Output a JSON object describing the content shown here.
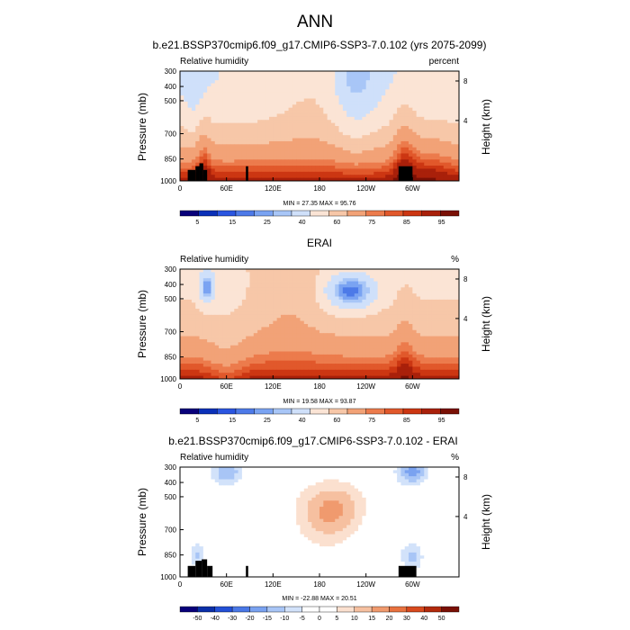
{
  "figure": {
    "title": "ANN"
  },
  "chart_data": [
    {
      "type": "heatmap",
      "title": "b.e21.BSSP370cmip6.f09_g17.CMIP6-SSP3-7.0.102 (yrs 2075-2099)",
      "left_label": "Relative humidity",
      "right_label": "percent",
      "ylabel": "Pressure (mb)",
      "ylabel_right": "Height (km)",
      "x_ticks": [
        "0",
        "60E",
        "120E",
        "180",
        "120W",
        "60W"
      ],
      "y_ticks": [
        "300",
        "400",
        "500",
        "700",
        "850",
        "1000"
      ],
      "y_ticks_right": [
        "8",
        "4"
      ],
      "stats": "MIN = 27.35  MAX = 95.76",
      "min": 27.35,
      "max": 95.76,
      "colorbar_labels": [
        "5",
        "15",
        "25",
        "40",
        "60",
        "75",
        "85",
        "95"
      ],
      "field": "full"
    },
    {
      "type": "heatmap",
      "title": "ERAI",
      "left_label": "Relative humidity",
      "right_label": "%",
      "ylabel": "Pressure (mb)",
      "ylabel_right": "Height (km)",
      "x_ticks": [
        "0",
        "60E",
        "120E",
        "180",
        "120W",
        "60W"
      ],
      "y_ticks": [
        "300",
        "400",
        "500",
        "700",
        "850",
        "1000"
      ],
      "y_ticks_right": [
        "8",
        "4"
      ],
      "stats": "MIN = 19.58  MAX = 93.87",
      "min": 19.58,
      "max": 93.87,
      "colorbar_labels": [
        "5",
        "15",
        "25",
        "40",
        "60",
        "75",
        "85",
        "95"
      ],
      "field": "full"
    },
    {
      "type": "heatmap",
      "title": "b.e21.BSSP370cmip6.f09_g17.CMIP6-SSP3-7.0.102 - ERAI",
      "left_label": "Relative humidity",
      "right_label": "%",
      "ylabel": "Pressure (mb)",
      "ylabel_right": "Height (km)",
      "x_ticks": [
        "0",
        "60E",
        "120E",
        "180",
        "120W",
        "60W"
      ],
      "y_ticks": [
        "300",
        "400",
        "500",
        "700",
        "850",
        "1000"
      ],
      "y_ticks_right": [
        "8",
        "4"
      ],
      "stats": "MIN = -22.88  MAX = 20.51",
      "min": -22.88,
      "max": 20.51,
      "colorbar_labels": [
        "-50",
        "-40",
        "-30",
        "-20",
        "-15",
        "-10",
        "-5",
        "0",
        "5",
        "10",
        "15",
        "20",
        "30",
        "40",
        "50"
      ],
      "field": "diff"
    }
  ],
  "palette": {
    "full_bins": [
      "#08007a",
      "#0a30b8",
      "#2a55e0",
      "#4d7ae8",
      "#7aa3f2",
      "#a8c6f7",
      "#cfe0fa",
      "#fbe4d5",
      "#f7c7a8",
      "#f2a277",
      "#ec7b4c",
      "#e1582b",
      "#cc3612",
      "#a9200a",
      "#7a1005"
    ],
    "diff_bins": [
      "#08007a",
      "#0a2fa8",
      "#2350d6",
      "#4a78e6",
      "#7aa2f0",
      "#a8c5f6",
      "#d2e2fa",
      "#ffffff",
      "#ffffff",
      "#fbe0cf",
      "#f6c0a0",
      "#f09a6e",
      "#e8723f",
      "#d84a1e",
      "#b22a0c",
      "#7a1005"
    ]
  }
}
